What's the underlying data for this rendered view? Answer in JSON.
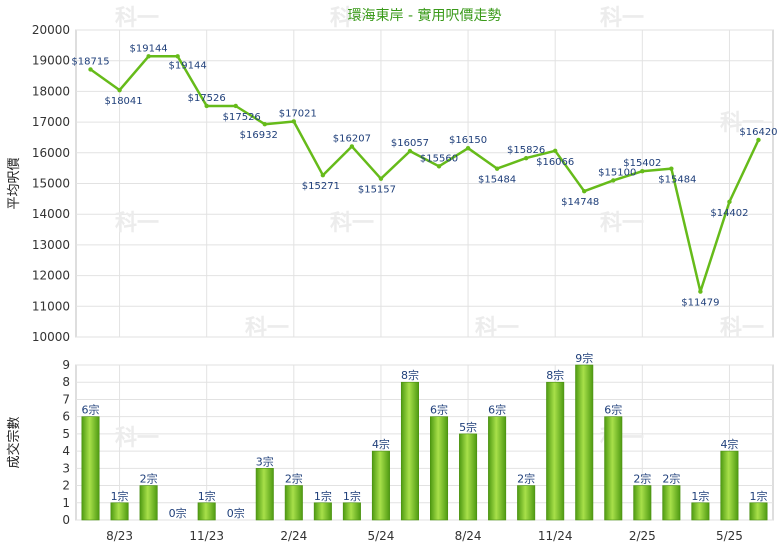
{
  "chart_data": [
    {
      "type": "line",
      "title": "環海東岸 - 實用呎價走勢",
      "ylabel": "平均呎價",
      "ylim": [
        10000,
        20000
      ],
      "yticks": [
        10000,
        11000,
        12000,
        13000,
        14000,
        15000,
        16000,
        17000,
        18000,
        19000,
        20000
      ],
      "grid": true,
      "series": [
        {
          "color": "#66bb1a",
          "values": [
            18715,
            18041,
            19144,
            19144,
            17526,
            17526,
            16932,
            17021,
            15271,
            16207,
            15157,
            16057,
            15560,
            16150,
            15484,
            15826,
            16066,
            14748,
            15100,
            15402,
            15484,
            11479,
            14402,
            16420
          ],
          "labels": [
            "$18715",
            "$18041",
            "$19144",
            "$19144",
            "$17526",
            "$17526",
            "$16932",
            "$17021",
            "$15271",
            "$16207",
            "$15157",
            "$16057",
            "$15560",
            "$16150",
            "$15484",
            "$15826",
            "$16066",
            "$14748",
            "$15100",
            "$15402",
            "$15484",
            "$11479",
            "$14402",
            "$16420"
          ]
        }
      ]
    },
    {
      "type": "bar",
      "ylabel": "成交宗數",
      "ylim": [
        0,
        9
      ],
      "yticks": [
        0,
        1,
        2,
        3,
        4,
        5,
        6,
        7,
        8,
        9
      ],
      "grid": true,
      "x_tick_labels": [
        "8/23",
        "11/23",
        "2/24",
        "5/24",
        "8/24",
        "11/24",
        "2/25",
        "5/25"
      ],
      "series": [
        {
          "color": "#7cc52a",
          "values": [
            6,
            1,
            2,
            0,
            1,
            0,
            3,
            2,
            1,
            1,
            4,
            8,
            6,
            5,
            6,
            2,
            8,
            9,
            6,
            2,
            2,
            1,
            4,
            1
          ],
          "labels": [
            "6宗",
            "1宗",
            "2宗",
            "0宗",
            "1宗",
            "0宗",
            "3宗",
            "2宗",
            "1宗",
            "1宗",
            "4宗",
            "8宗",
            "6宗",
            "5宗",
            "6宗",
            "2宗",
            "8宗",
            "9宗",
            "6宗",
            "2宗",
            "2宗",
            "1宗",
            "4宗",
            "1宗"
          ]
        }
      ]
    }
  ],
  "watermark": "科一"
}
